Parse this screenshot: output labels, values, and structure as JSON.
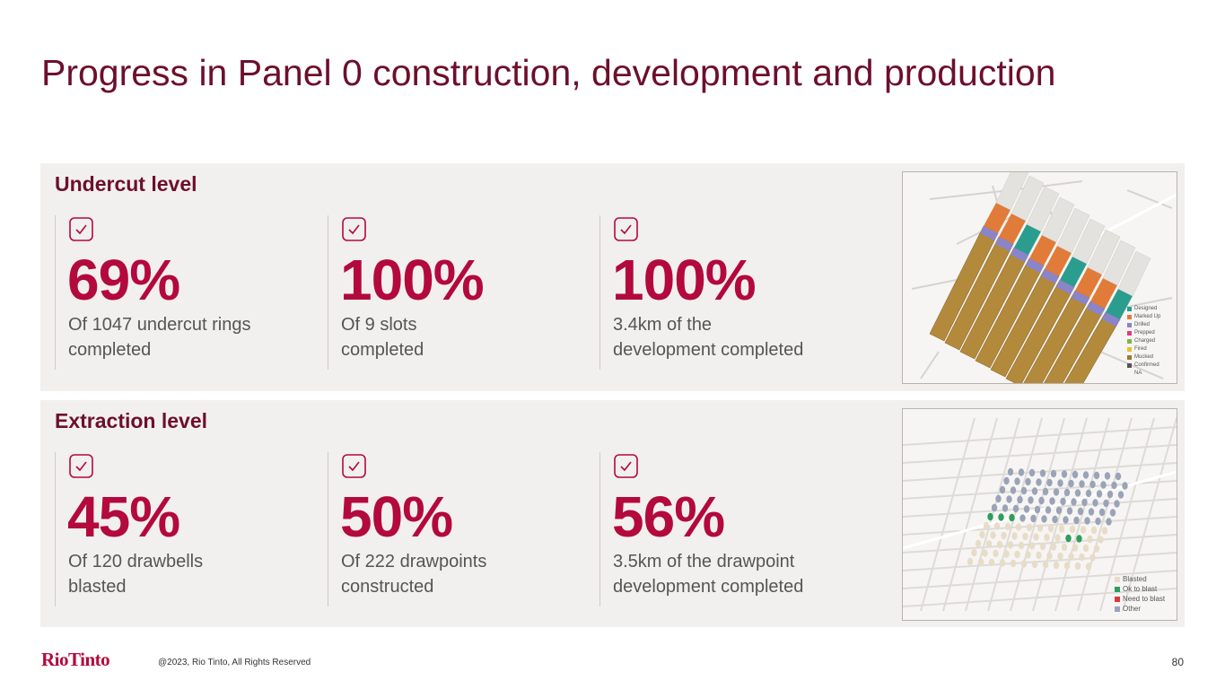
{
  "page": {
    "title": "Progress in Panel 0 construction, development and production",
    "footer_logo": "RioTinto",
    "copyright": "@2023, Rio Tinto, All Rights Reserved",
    "page_number": "80"
  },
  "undercut": {
    "heading": "Undercut level",
    "stats": [
      {
        "value": "69%",
        "line1": "Of 1047 undercut rings",
        "line2": "completed"
      },
      {
        "value": "100%",
        "line1": "Of 9 slots",
        "line2": "completed"
      },
      {
        "value": "100%",
        "line1": "3.4km of the",
        "line2": "development completed"
      }
    ],
    "legend": [
      {
        "label": "Designed",
        "color": "#2a9d8f"
      },
      {
        "label": "Marked Up",
        "color": "#e07b39"
      },
      {
        "label": "Drilled",
        "color": "#8a84c9"
      },
      {
        "label": "Prepped",
        "color": "#e63980"
      },
      {
        "label": "Charged",
        "color": "#7ab648"
      },
      {
        "label": "Fired",
        "color": "#e6c229"
      },
      {
        "label": "Mucked",
        "color": "#a0782d"
      },
      {
        "label": "Confirmed",
        "color": "#555555"
      },
      {
        "label": "NA",
        "color": ""
      }
    ]
  },
  "extraction": {
    "heading": "Extraction level",
    "stats": [
      {
        "value": "45%",
        "line1": "Of 120 drawbells",
        "line2": "blasted"
      },
      {
        "value": "50%",
        "line1": "Of 222 drawpoints",
        "line2": "constructed"
      },
      {
        "value": "56%",
        "line1": "3.5km of the drawpoint",
        "line2": "development completed"
      }
    ],
    "legend": [
      {
        "label": "Blasted",
        "color": "#e8dcc8"
      },
      {
        "label": "Ok to blast",
        "color": "#2e9e5b"
      },
      {
        "label": "Need to blast",
        "color": "#d93a3a"
      },
      {
        "label": "Other",
        "color": "#9aa3b8"
      }
    ]
  },
  "colors": {
    "brand": "#b3093d",
    "title": "#6d0f2c",
    "panel": "#f2f0ee"
  }
}
